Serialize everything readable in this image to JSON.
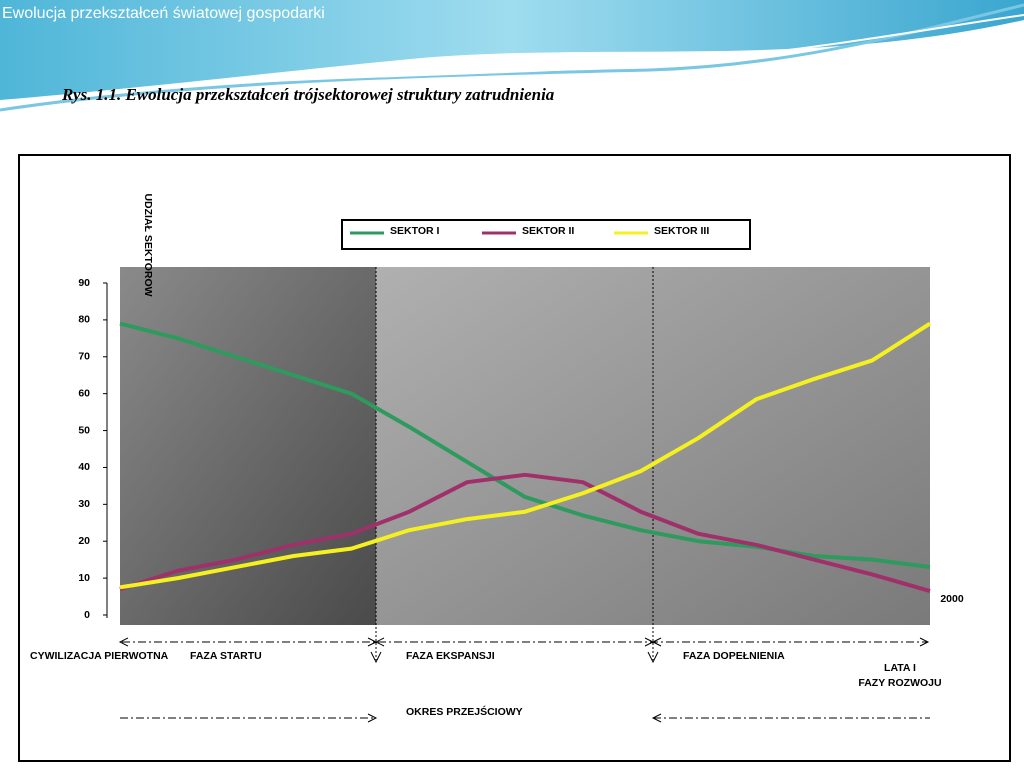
{
  "header": {
    "title": "Ewolucja przekształceń światowej gospodarki"
  },
  "chart_data": {
    "type": "line",
    "title": "Rys. 1.1. Ewolucja przekształceń trójsektorowej struktury zatrudnienia",
    "y_label": "UDZIAŁ SEKTOROW",
    "x_label": "LATA I FAZY ROZWOJU",
    "categories": [
      null,
      null,
      null,
      null,
      null,
      null,
      null,
      null,
      null,
      null,
      null,
      null,
      null,
      null,
      "2000"
    ],
    "series": [
      {
        "name": "SEKTOR I",
        "color": "#2e9a5e",
        "values": [
          79,
          75,
          70,
          65,
          60,
          51,
          41.5,
          32,
          27,
          23,
          20,
          18.5,
          16,
          15,
          13
        ]
      },
      {
        "name": "SEKTOR II",
        "color": "#a0306a",
        "values": [
          7,
          12,
          15,
          19,
          22,
          28,
          36,
          38,
          36,
          28,
          22,
          19,
          15,
          11,
          6.5
        ]
      },
      {
        "name": "SEKTOR III",
        "color": "#f5f020",
        "values": [
          7.5,
          10,
          13,
          16,
          18,
          23,
          26,
          28,
          33,
          39,
          48,
          58.5,
          64,
          69,
          79
        ]
      }
    ],
    "ylim": [
      0,
      90
    ],
    "yticks": [
      0,
      10,
      20,
      30,
      40,
      50,
      60,
      70,
      80,
      90
    ],
    "annotations": [
      "CYWILIZACJA PIERWOTNA",
      "FAZA STARTU",
      "FAZA EKSPANSJI",
      "FAZA DOPEŁNIENIA",
      "OKRES PRZEJŚCIOWY"
    ]
  }
}
